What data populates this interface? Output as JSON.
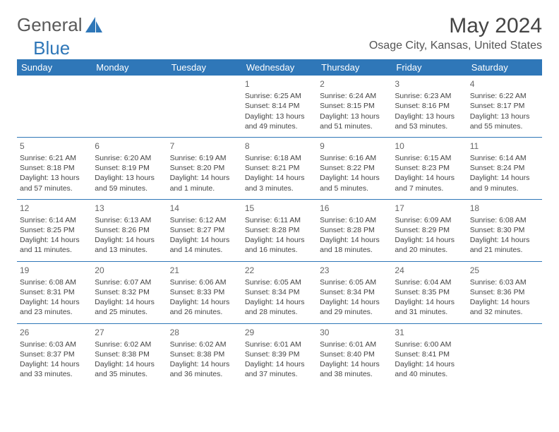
{
  "logo": {
    "text1": "General",
    "text2": "Blue"
  },
  "title": "May 2024",
  "location": "Osage City, Kansas, United States",
  "colors": {
    "header_bg": "#2f77b8",
    "header_text": "#ffffff",
    "body_text": "#444444",
    "rule": "#2f77b8",
    "logo_gray": "#5a5a5a",
    "logo_blue": "#2f77b8",
    "background": "#ffffff"
  },
  "typography": {
    "title_fontsize": 30,
    "subtitle_fontsize": 16,
    "dayhead_fontsize": 13,
    "cell_fontsize": 10.5
  },
  "days": [
    "Sunday",
    "Monday",
    "Tuesday",
    "Wednesday",
    "Thursday",
    "Friday",
    "Saturday"
  ],
  "weeks": [
    [
      null,
      null,
      null,
      {
        "n": "1",
        "sr": "6:25 AM",
        "ss": "8:14 PM",
        "d": "13 hours and 49 minutes."
      },
      {
        "n": "2",
        "sr": "6:24 AM",
        "ss": "8:15 PM",
        "d": "13 hours and 51 minutes."
      },
      {
        "n": "3",
        "sr": "6:23 AM",
        "ss": "8:16 PM",
        "d": "13 hours and 53 minutes."
      },
      {
        "n": "4",
        "sr": "6:22 AM",
        "ss": "8:17 PM",
        "d": "13 hours and 55 minutes."
      }
    ],
    [
      {
        "n": "5",
        "sr": "6:21 AM",
        "ss": "8:18 PM",
        "d": "13 hours and 57 minutes."
      },
      {
        "n": "6",
        "sr": "6:20 AM",
        "ss": "8:19 PM",
        "d": "13 hours and 59 minutes."
      },
      {
        "n": "7",
        "sr": "6:19 AM",
        "ss": "8:20 PM",
        "d": "14 hours and 1 minute."
      },
      {
        "n": "8",
        "sr": "6:18 AM",
        "ss": "8:21 PM",
        "d": "14 hours and 3 minutes."
      },
      {
        "n": "9",
        "sr": "6:16 AM",
        "ss": "8:22 PM",
        "d": "14 hours and 5 minutes."
      },
      {
        "n": "10",
        "sr": "6:15 AM",
        "ss": "8:23 PM",
        "d": "14 hours and 7 minutes."
      },
      {
        "n": "11",
        "sr": "6:14 AM",
        "ss": "8:24 PM",
        "d": "14 hours and 9 minutes."
      }
    ],
    [
      {
        "n": "12",
        "sr": "6:14 AM",
        "ss": "8:25 PM",
        "d": "14 hours and 11 minutes."
      },
      {
        "n": "13",
        "sr": "6:13 AM",
        "ss": "8:26 PM",
        "d": "14 hours and 13 minutes."
      },
      {
        "n": "14",
        "sr": "6:12 AM",
        "ss": "8:27 PM",
        "d": "14 hours and 14 minutes."
      },
      {
        "n": "15",
        "sr": "6:11 AM",
        "ss": "8:28 PM",
        "d": "14 hours and 16 minutes."
      },
      {
        "n": "16",
        "sr": "6:10 AM",
        "ss": "8:28 PM",
        "d": "14 hours and 18 minutes."
      },
      {
        "n": "17",
        "sr": "6:09 AM",
        "ss": "8:29 PM",
        "d": "14 hours and 20 minutes."
      },
      {
        "n": "18",
        "sr": "6:08 AM",
        "ss": "8:30 PM",
        "d": "14 hours and 21 minutes."
      }
    ],
    [
      {
        "n": "19",
        "sr": "6:08 AM",
        "ss": "8:31 PM",
        "d": "14 hours and 23 minutes."
      },
      {
        "n": "20",
        "sr": "6:07 AM",
        "ss": "8:32 PM",
        "d": "14 hours and 25 minutes."
      },
      {
        "n": "21",
        "sr": "6:06 AM",
        "ss": "8:33 PM",
        "d": "14 hours and 26 minutes."
      },
      {
        "n": "22",
        "sr": "6:05 AM",
        "ss": "8:34 PM",
        "d": "14 hours and 28 minutes."
      },
      {
        "n": "23",
        "sr": "6:05 AM",
        "ss": "8:34 PM",
        "d": "14 hours and 29 minutes."
      },
      {
        "n": "24",
        "sr": "6:04 AM",
        "ss": "8:35 PM",
        "d": "14 hours and 31 minutes."
      },
      {
        "n": "25",
        "sr": "6:03 AM",
        "ss": "8:36 PM",
        "d": "14 hours and 32 minutes."
      }
    ],
    [
      {
        "n": "26",
        "sr": "6:03 AM",
        "ss": "8:37 PM",
        "d": "14 hours and 33 minutes."
      },
      {
        "n": "27",
        "sr": "6:02 AM",
        "ss": "8:38 PM",
        "d": "14 hours and 35 minutes."
      },
      {
        "n": "28",
        "sr": "6:02 AM",
        "ss": "8:38 PM",
        "d": "14 hours and 36 minutes."
      },
      {
        "n": "29",
        "sr": "6:01 AM",
        "ss": "8:39 PM",
        "d": "14 hours and 37 minutes."
      },
      {
        "n": "30",
        "sr": "6:01 AM",
        "ss": "8:40 PM",
        "d": "14 hours and 38 minutes."
      },
      {
        "n": "31",
        "sr": "6:00 AM",
        "ss": "8:41 PM",
        "d": "14 hours and 40 minutes."
      },
      null
    ]
  ],
  "labels": {
    "sunrise": "Sunrise:",
    "sunset": "Sunset:",
    "daylight": "Daylight:"
  }
}
